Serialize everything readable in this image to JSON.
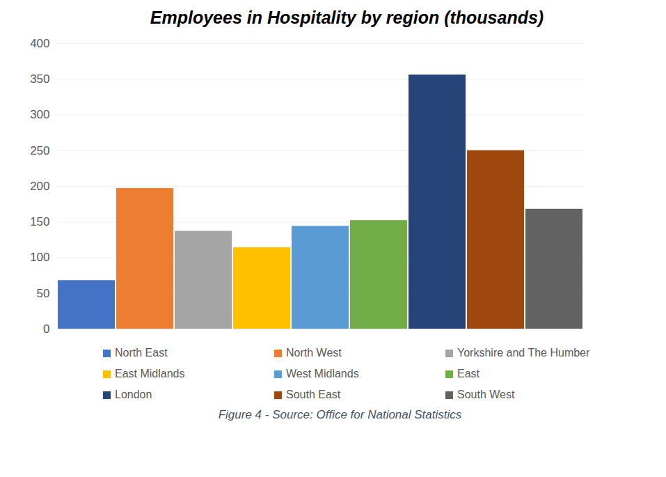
{
  "chart_data": {
    "type": "bar",
    "title": "Employees in Hospitality by region (thousands)",
    "caption": "Figure 4 - Source: Office for National Statistics",
    "categories": [
      "North East",
      "North West",
      "Yorkshire and The Humber",
      "East Midlands",
      "West Midlands",
      "East",
      "London",
      "South East",
      "South West"
    ],
    "values": [
      68,
      197,
      137,
      114,
      144,
      152,
      356,
      250,
      168
    ],
    "colors": [
      "#4472c4",
      "#ed7d31",
      "#a5a5a5",
      "#ffc000",
      "#5b9bd5",
      "#70ad47",
      "#264478",
      "#9e480e",
      "#636363"
    ],
    "ylim": [
      0,
      400
    ],
    "yticks": [
      0,
      50,
      100,
      150,
      200,
      250,
      300,
      350,
      400
    ],
    "grid": true,
    "legend": "bottom",
    "tick_labels": "y"
  }
}
